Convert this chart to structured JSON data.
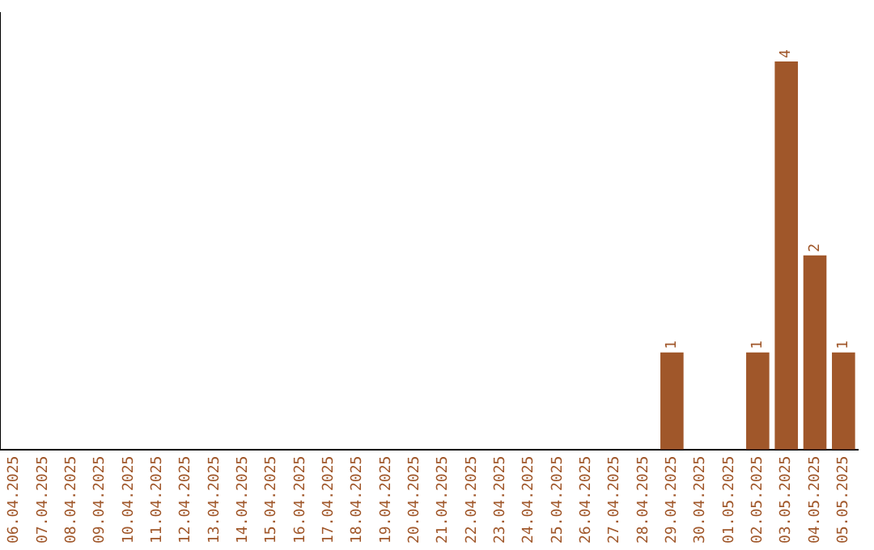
{
  "chart_data": {
    "type": "bar",
    "categories": [
      "06.04.2025",
      "07.04.2025",
      "08.04.2025",
      "09.04.2025",
      "10.04.2025",
      "11.04.2025",
      "12.04.2025",
      "13.04.2025",
      "14.04.2025",
      "15.04.2025",
      "16.04.2025",
      "17.04.2025",
      "18.04.2025",
      "19.04.2025",
      "20.04.2025",
      "21.04.2025",
      "22.04.2025",
      "23.04.2025",
      "24.04.2025",
      "25.04.2025",
      "26.04.2025",
      "27.04.2025",
      "28.04.2025",
      "29.04.2025",
      "30.04.2025",
      "01.05.2025",
      "02.05.2025",
      "03.05.2025",
      "04.05.2025",
      "05.05.2025"
    ],
    "values": [
      null,
      null,
      null,
      null,
      null,
      null,
      null,
      null,
      null,
      null,
      null,
      null,
      null,
      null,
      null,
      null,
      null,
      null,
      null,
      null,
      null,
      null,
      null,
      1,
      null,
      null,
      1,
      4,
      2,
      1
    ],
    "data_labels": true,
    "color": "#a0572a",
    "grid": false,
    "legend": false,
    "tick_labels": "x"
  }
}
